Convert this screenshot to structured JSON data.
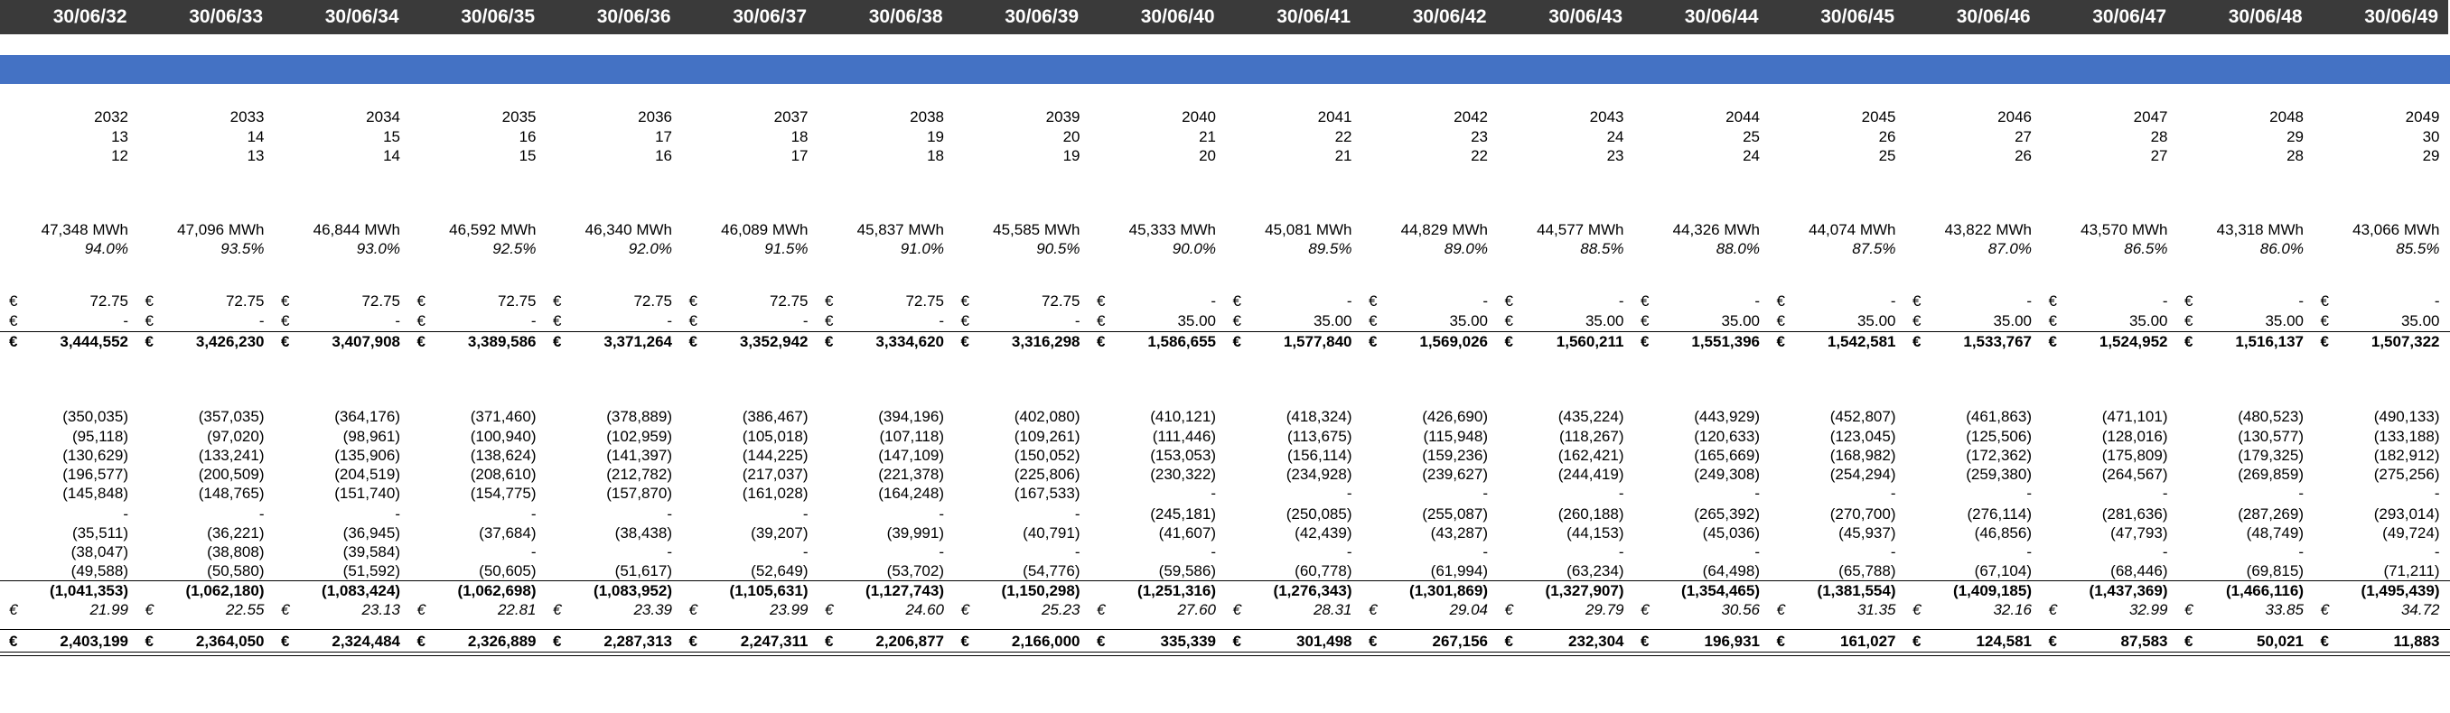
{
  "columns": [
    {
      "date": "30/06/32",
      "year": "2032",
      "n1": "13",
      "n2": "12",
      "energy": "47,348 MWh",
      "pct": "94.0%",
      "p1": "72.75",
      "p2": "-",
      "rev": "3,444,552",
      "c1": "(350,035)",
      "c2": "(95,118)",
      "c3": "(130,629)",
      "c4": "(196,577)",
      "c5": "(145,848)",
      "c6": "-",
      "c7": "(35,511)",
      "c8": "(38,047)",
      "c9": "(49,588)",
      "ctot": "(1,041,353)",
      "unit": "21.99",
      "net": "2,403,199"
    },
    {
      "date": "30/06/33",
      "year": "2033",
      "n1": "14",
      "n2": "13",
      "energy": "47,096 MWh",
      "pct": "93.5%",
      "p1": "72.75",
      "p2": "-",
      "rev": "3,426,230",
      "c1": "(357,035)",
      "c2": "(97,020)",
      "c3": "(133,241)",
      "c4": "(200,509)",
      "c5": "(148,765)",
      "c6": "-",
      "c7": "(36,221)",
      "c8": "(38,808)",
      "c9": "(50,580)",
      "ctot": "(1,062,180)",
      "unit": "22.55",
      "net": "2,364,050"
    },
    {
      "date": "30/06/34",
      "year": "2034",
      "n1": "15",
      "n2": "14",
      "energy": "46,844 MWh",
      "pct": "93.0%",
      "p1": "72.75",
      "p2": "-",
      "rev": "3,407,908",
      "c1": "(364,176)",
      "c2": "(98,961)",
      "c3": "(135,906)",
      "c4": "(204,519)",
      "c5": "(151,740)",
      "c6": "-",
      "c7": "(36,945)",
      "c8": "(39,584)",
      "c9": "(51,592)",
      "ctot": "(1,083,424)",
      "unit": "23.13",
      "net": "2,324,484"
    },
    {
      "date": "30/06/35",
      "year": "2035",
      "n1": "16",
      "n2": "15",
      "energy": "46,592 MWh",
      "pct": "92.5%",
      "p1": "72.75",
      "p2": "-",
      "rev": "3,389,586",
      "c1": "(371,460)",
      "c2": "(100,940)",
      "c3": "(138,624)",
      "c4": "(208,610)",
      "c5": "(154,775)",
      "c6": "-",
      "c7": "(37,684)",
      "c8": "-",
      "c9": "(50,605)",
      "ctot": "(1,062,698)",
      "unit": "22.81",
      "net": "2,326,889"
    },
    {
      "date": "30/06/36",
      "year": "2036",
      "n1": "17",
      "n2": "16",
      "energy": "46,340 MWh",
      "pct": "92.0%",
      "p1": "72.75",
      "p2": "-",
      "rev": "3,371,264",
      "c1": "(378,889)",
      "c2": "(102,959)",
      "c3": "(141,397)",
      "c4": "(212,782)",
      "c5": "(157,870)",
      "c6": "-",
      "c7": "(38,438)",
      "c8": "-",
      "c9": "(51,617)",
      "ctot": "(1,083,952)",
      "unit": "23.39",
      "net": "2,287,313"
    },
    {
      "date": "30/06/37",
      "year": "2037",
      "n1": "18",
      "n2": "17",
      "energy": "46,089 MWh",
      "pct": "91.5%",
      "p1": "72.75",
      "p2": "-",
      "rev": "3,352,942",
      "c1": "(386,467)",
      "c2": "(105,018)",
      "c3": "(144,225)",
      "c4": "(217,037)",
      "c5": "(161,028)",
      "c6": "-",
      "c7": "(39,207)",
      "c8": "-",
      "c9": "(52,649)",
      "ctot": "(1,105,631)",
      "unit": "23.99",
      "net": "2,247,311"
    },
    {
      "date": "30/06/38",
      "year": "2038",
      "n1": "19",
      "n2": "18",
      "energy": "45,837 MWh",
      "pct": "91.0%",
      "p1": "72.75",
      "p2": "-",
      "rev": "3,334,620",
      "c1": "(394,196)",
      "c2": "(107,118)",
      "c3": "(147,109)",
      "c4": "(221,378)",
      "c5": "(164,248)",
      "c6": "-",
      "c7": "(39,991)",
      "c8": "-",
      "c9": "(53,702)",
      "ctot": "(1,127,743)",
      "unit": "24.60",
      "net": "2,206,877"
    },
    {
      "date": "30/06/39",
      "year": "2039",
      "n1": "20",
      "n2": "19",
      "energy": "45,585 MWh",
      "pct": "90.5%",
      "p1": "72.75",
      "p2": "-",
      "rev": "3,316,298",
      "c1": "(402,080)",
      "c2": "(109,261)",
      "c3": "(150,052)",
      "c4": "(225,806)",
      "c5": "(167,533)",
      "c6": "-",
      "c7": "(40,791)",
      "c8": "-",
      "c9": "(54,776)",
      "ctot": "(1,150,298)",
      "unit": "25.23",
      "net": "2,166,000"
    },
    {
      "date": "30/06/40",
      "year": "2040",
      "n1": "21",
      "n2": "20",
      "energy": "45,333 MWh",
      "pct": "90.0%",
      "p1": "-",
      "p2": "35.00",
      "rev": "1,586,655",
      "c1": "(410,121)",
      "c2": "(111,446)",
      "c3": "(153,053)",
      "c4": "(230,322)",
      "c5": "-",
      "c6": "(245,181)",
      "c7": "(41,607)",
      "c8": "-",
      "c9": "(59,586)",
      "ctot": "(1,251,316)",
      "unit": "27.60",
      "net": "335,339"
    },
    {
      "date": "30/06/41",
      "year": "2041",
      "n1": "22",
      "n2": "21",
      "energy": "45,081 MWh",
      "pct": "89.5%",
      "p1": "-",
      "p2": "35.00",
      "rev": "1,577,840",
      "c1": "(418,324)",
      "c2": "(113,675)",
      "c3": "(156,114)",
      "c4": "(234,928)",
      "c5": "-",
      "c6": "(250,085)",
      "c7": "(42,439)",
      "c8": "-",
      "c9": "(60,778)",
      "ctot": "(1,276,343)",
      "unit": "28.31",
      "net": "301,498"
    },
    {
      "date": "30/06/42",
      "year": "2042",
      "n1": "23",
      "n2": "22",
      "energy": "44,829 MWh",
      "pct": "89.0%",
      "p1": "-",
      "p2": "35.00",
      "rev": "1,569,026",
      "c1": "(426,690)",
      "c2": "(115,948)",
      "c3": "(159,236)",
      "c4": "(239,627)",
      "c5": "-",
      "c6": "(255,087)",
      "c7": "(43,287)",
      "c8": "-",
      "c9": "(61,994)",
      "ctot": "(1,301,869)",
      "unit": "29.04",
      "net": "267,156"
    },
    {
      "date": "30/06/43",
      "year": "2043",
      "n1": "24",
      "n2": "23",
      "energy": "44,577 MWh",
      "pct": "88.5%",
      "p1": "-",
      "p2": "35.00",
      "rev": "1,560,211",
      "c1": "(435,224)",
      "c2": "(118,267)",
      "c3": "(162,421)",
      "c4": "(244,419)",
      "c5": "-",
      "c6": "(260,188)",
      "c7": "(44,153)",
      "c8": "-",
      "c9": "(63,234)",
      "ctot": "(1,327,907)",
      "unit": "29.79",
      "net": "232,304"
    },
    {
      "date": "30/06/44",
      "year": "2044",
      "n1": "25",
      "n2": "24",
      "energy": "44,326 MWh",
      "pct": "88.0%",
      "p1": "-",
      "p2": "35.00",
      "rev": "1,551,396",
      "c1": "(443,929)",
      "c2": "(120,633)",
      "c3": "(165,669)",
      "c4": "(249,308)",
      "c5": "-",
      "c6": "(265,392)",
      "c7": "(45,036)",
      "c8": "-",
      "c9": "(64,498)",
      "ctot": "(1,354,465)",
      "unit": "30.56",
      "net": "196,931"
    },
    {
      "date": "30/06/45",
      "year": "2045",
      "n1": "26",
      "n2": "25",
      "energy": "44,074 MWh",
      "pct": "87.5%",
      "p1": "-",
      "p2": "35.00",
      "rev": "1,542,581",
      "c1": "(452,807)",
      "c2": "(123,045)",
      "c3": "(168,982)",
      "c4": "(254,294)",
      "c5": "-",
      "c6": "(270,700)",
      "c7": "(45,937)",
      "c8": "-",
      "c9": "(65,788)",
      "ctot": "(1,381,554)",
      "unit": "31.35",
      "net": "161,027"
    },
    {
      "date": "30/06/46",
      "year": "2046",
      "n1": "27",
      "n2": "26",
      "energy": "43,822 MWh",
      "pct": "87.0%",
      "p1": "-",
      "p2": "35.00",
      "rev": "1,533,767",
      "c1": "(461,863)",
      "c2": "(125,506)",
      "c3": "(172,362)",
      "c4": "(259,380)",
      "c5": "-",
      "c6": "(276,114)",
      "c7": "(46,856)",
      "c8": "-",
      "c9": "(67,104)",
      "ctot": "(1,409,185)",
      "unit": "32.16",
      "net": "124,581"
    },
    {
      "date": "30/06/47",
      "year": "2047",
      "n1": "28",
      "n2": "27",
      "energy": "43,570 MWh",
      "pct": "86.5%",
      "p1": "-",
      "p2": "35.00",
      "rev": "1,524,952",
      "c1": "(471,101)",
      "c2": "(128,016)",
      "c3": "(175,809)",
      "c4": "(264,567)",
      "c5": "-",
      "c6": "(281,636)",
      "c7": "(47,793)",
      "c8": "-",
      "c9": "(68,446)",
      "ctot": "(1,437,369)",
      "unit": "32.99",
      "net": "87,583"
    },
    {
      "date": "30/06/48",
      "year": "2048",
      "n1": "29",
      "n2": "28",
      "energy": "43,318 MWh",
      "pct": "86.0%",
      "p1": "-",
      "p2": "35.00",
      "rev": "1,516,137",
      "c1": "(480,523)",
      "c2": "(130,577)",
      "c3": "(179,325)",
      "c4": "(269,859)",
      "c5": "-",
      "c6": "(287,269)",
      "c7": "(48,749)",
      "c8": "-",
      "c9": "(69,815)",
      "ctot": "(1,466,116)",
      "unit": "33.85",
      "net": "50,021"
    },
    {
      "date": "30/06/49",
      "year": "2049",
      "n1": "30",
      "n2": "29",
      "energy": "43,066 MWh",
      "pct": "85.5%",
      "p1": "-",
      "p2": "35.00",
      "rev": "1,507,322",
      "c1": "(490,133)",
      "c2": "(133,188)",
      "c3": "(182,912)",
      "c4": "(275,256)",
      "c5": "-",
      "c6": "(293,014)",
      "c7": "(49,724)",
      "c8": "-",
      "c9": "(71,211)",
      "ctot": "(1,495,439)",
      "unit": "34.72",
      "net": "11,883"
    }
  ],
  "currency_symbol": "€",
  "colors": {
    "header_bg": "#3a3a3a",
    "header_text": "#ffffff",
    "band": "#4472c4"
  }
}
